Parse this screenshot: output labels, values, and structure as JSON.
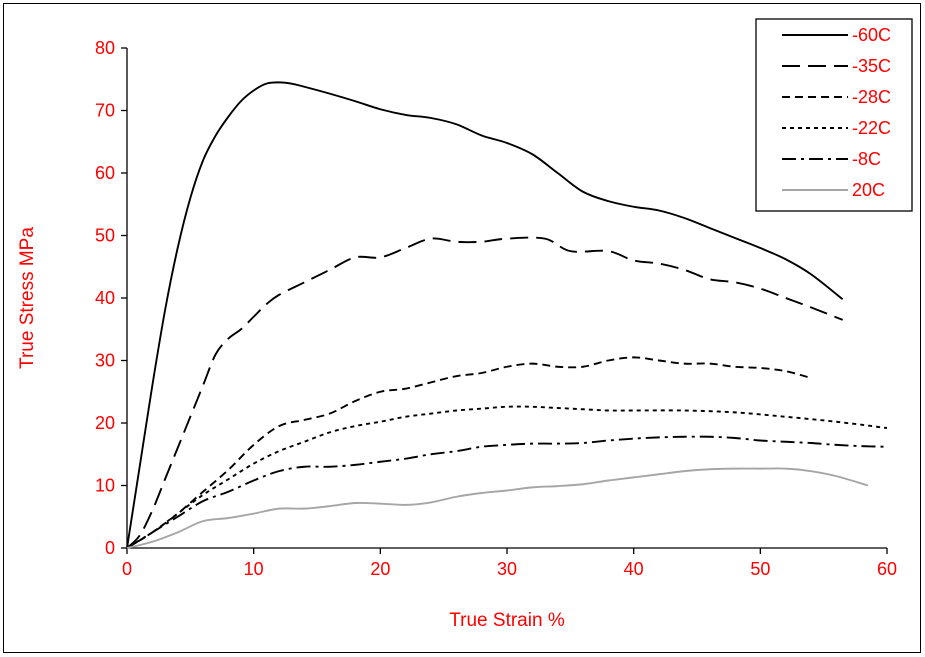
{
  "chart_data": {
    "type": "line",
    "title": "",
    "xlabel": "True Strain %",
    "ylabel": "True Stress MPa",
    "xlim": [
      0,
      60
    ],
    "ylim": [
      0,
      80
    ],
    "xticks": [
      0,
      10,
      20,
      30,
      40,
      50,
      60
    ],
    "yticks": [
      0,
      10,
      20,
      30,
      40,
      50,
      60,
      70,
      80
    ],
    "grid": false,
    "legend_position": "top-right",
    "label_color": "#ff0000",
    "series": [
      {
        "name": "-60C",
        "color": "#000000",
        "dash": "solid",
        "x": [
          0,
          1,
          2,
          3,
          4,
          5,
          6,
          7,
          8,
          9,
          10,
          11,
          12,
          13,
          14,
          16,
          18,
          20,
          22,
          24,
          26,
          28,
          30,
          32,
          34,
          36,
          38,
          40,
          42,
          44,
          46,
          48,
          50,
          52,
          54,
          56.5
        ],
        "y": [
          0,
          13,
          26,
          38,
          48,
          56,
          62,
          66,
          69,
          71.5,
          73.2,
          74.3,
          74.5,
          74.3,
          73.8,
          72.7,
          71.5,
          70.2,
          69.3,
          68.8,
          67.8,
          66.0,
          64.8,
          63.0,
          60.0,
          57.0,
          55.5,
          54.6,
          54.0,
          52.8,
          51.2,
          49.6,
          48.0,
          46.2,
          43.8,
          39.8
        ]
      },
      {
        "name": "-35C",
        "color": "#000000",
        "dash": "long-dash",
        "x": [
          0,
          1,
          2,
          3,
          4,
          5,
          6,
          7,
          8,
          9,
          10,
          11,
          12,
          14,
          16,
          18,
          20,
          22,
          24,
          26,
          28,
          30,
          33,
          35,
          38,
          40,
          42,
          44,
          46,
          48,
          50,
          52,
          54,
          56.5
        ],
        "y": [
          0,
          2,
          6,
          11,
          16,
          21,
          26,
          31,
          33.5,
          35,
          37,
          39,
          40.5,
          42.5,
          44.5,
          46.5,
          46.5,
          48,
          49.5,
          49,
          49,
          49.5,
          49.5,
          47.5,
          47.5,
          46,
          45.5,
          44.5,
          43,
          42.5,
          41.5,
          40,
          38.5,
          36.5
        ]
      },
      {
        "name": "-28C",
        "color": "#000000",
        "dash": "medium-dash",
        "x": [
          0,
          2,
          4,
          6,
          8,
          10,
          12,
          14,
          16,
          18,
          20,
          22,
          24,
          26,
          28,
          30,
          32,
          34,
          36,
          38,
          40,
          42,
          44,
          46,
          48,
          50,
          52,
          54
        ],
        "y": [
          0,
          2.5,
          5.5,
          9,
          12.5,
          16.5,
          19.5,
          20.5,
          21.5,
          23.5,
          25,
          25.5,
          26.5,
          27.5,
          28,
          29,
          29.5,
          29,
          29,
          30,
          30.5,
          30,
          29.5,
          29.5,
          29,
          28.8,
          28.3,
          27.2
        ]
      },
      {
        "name": "-22C",
        "color": "#000000",
        "dash": "short-dash",
        "x": [
          0,
          2,
          4,
          6,
          8,
          10,
          12,
          14,
          16,
          18,
          20,
          22,
          24,
          26,
          28,
          30,
          32,
          34,
          36,
          38,
          40,
          44,
          48,
          52,
          56,
          60
        ],
        "y": [
          0,
          2.5,
          5.5,
          8.5,
          11,
          13.5,
          15.5,
          17,
          18.5,
          19.5,
          20.2,
          21,
          21.5,
          22,
          22.3,
          22.6,
          22.6,
          22.4,
          22.2,
          22,
          22,
          22,
          21.7,
          21,
          20.2,
          19.2
        ]
      },
      {
        "name": "-8C",
        "color": "#000000",
        "dash": "dash-dot",
        "x": [
          0,
          2,
          4,
          6,
          8,
          10,
          12,
          14,
          16,
          18,
          20,
          22,
          24,
          26,
          28,
          30,
          32,
          34,
          36,
          38,
          40,
          42,
          44,
          46,
          48,
          50,
          52,
          54,
          56,
          58,
          60
        ],
        "y": [
          0,
          2.5,
          5,
          7.5,
          9,
          10.8,
          12.3,
          13,
          13,
          13.3,
          13.8,
          14.3,
          15,
          15.5,
          16.2,
          16.5,
          16.7,
          16.7,
          16.8,
          17.2,
          17.5,
          17.7,
          17.8,
          17.8,
          17.6,
          17.2,
          17.0,
          16.8,
          16.5,
          16.3,
          16.2
        ]
      },
      {
        "name": "20C",
        "color": "#a6a6a6",
        "dash": "solid",
        "x": [
          0,
          2,
          4,
          6,
          8,
          10,
          12,
          14,
          16,
          18,
          20,
          22,
          24,
          26,
          28,
          30,
          32,
          34,
          36,
          38,
          40,
          42,
          44,
          46,
          48,
          50,
          52,
          54,
          56,
          58.5
        ],
        "y": [
          0,
          1,
          2.5,
          4.3,
          4.8,
          5.5,
          6.3,
          6.3,
          6.7,
          7.2,
          7.1,
          6.9,
          7.3,
          8.2,
          8.8,
          9.2,
          9.7,
          9.9,
          10.2,
          10.8,
          11.3,
          11.8,
          12.3,
          12.6,
          12.7,
          12.7,
          12.7,
          12.3,
          11.5,
          10.0
        ]
      }
    ]
  }
}
